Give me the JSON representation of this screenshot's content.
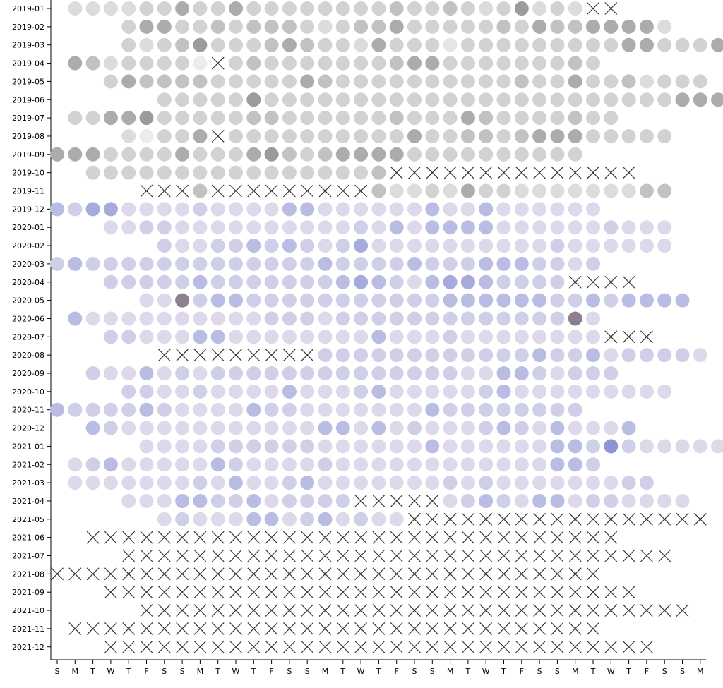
{
  "chart_data": {
    "type": "heatmap",
    "title": "",
    "xlabel": "",
    "ylabel": "",
    "mark": "circle",
    "x_labels": [
      "S",
      "M",
      "T",
      "W",
      "T",
      "F",
      "S",
      "S",
      "M",
      "T",
      "W",
      "T",
      "F",
      "S",
      "S",
      "M",
      "T",
      "W",
      "T",
      "F",
      "S",
      "S",
      "M",
      "T",
      "W",
      "T",
      "F",
      "S",
      "S",
      "M",
      "T",
      "W",
      "T",
      "F",
      "S",
      "S",
      "M"
    ],
    "rows": [
      {
        "month": "2019-01",
        "start": 1,
        "values": [
          2,
          2,
          2,
          2,
          3,
          3,
          5,
          3,
          3,
          5,
          3,
          3,
          3,
          3,
          3,
          3,
          3,
          3,
          4,
          3,
          3,
          4,
          3,
          2,
          3,
          6,
          2,
          3,
          2,
          3
        ],
        "missing_from": 29
      },
      {
        "month": "2019-02",
        "start": 4,
        "values": [
          3,
          5,
          5,
          3,
          3,
          4,
          3,
          4,
          4,
          4,
          3,
          2,
          3,
          4,
          4,
          5,
          3,
          3,
          3,
          3,
          3,
          4,
          3,
          5,
          4,
          4,
          5,
          5,
          5,
          5,
          2
        ]
      },
      {
        "month": "2019-03",
        "start": 4,
        "values": [
          3,
          2,
          3,
          4,
          6,
          3,
          3,
          3,
          4,
          5,
          4,
          3,
          3,
          2,
          5,
          3,
          3,
          3,
          1,
          3,
          3,
          3,
          3,
          3,
          3,
          3,
          3,
          3,
          5,
          5,
          3,
          3,
          3,
          5,
          5,
          3,
          3
        ]
      },
      {
        "month": "2019-04",
        "start": 1,
        "values": [
          5,
          4,
          2,
          3,
          3,
          3,
          3,
          0,
          3,
          3,
          4,
          3,
          3,
          3,
          3,
          3,
          3,
          3,
          4,
          5,
          5,
          3,
          3,
          3,
          3,
          3,
          3,
          3,
          4,
          3
        ],
        "missing": [
          8
        ]
      },
      {
        "month": "2019-05",
        "start": 3,
        "values": [
          3,
          5,
          4,
          4,
          4,
          4,
          3,
          3,
          3,
          3,
          3,
          5,
          4,
          3,
          3,
          3,
          3,
          3,
          3,
          3,
          3,
          3,
          3,
          4,
          3,
          3,
          5,
          3,
          3,
          4,
          2,
          3,
          3,
          3
        ]
      },
      {
        "month": "2019-06",
        "start": 6,
        "values": [
          3,
          3,
          3,
          3,
          3,
          6,
          3,
          3,
          3,
          3,
          3,
          3,
          3,
          3,
          3,
          3,
          3,
          3,
          3,
          3,
          3,
          3,
          3,
          3,
          3,
          3,
          3,
          3,
          3,
          5,
          5,
          5,
          5
        ]
      },
      {
        "month": "2019-07",
        "start": 1,
        "values": [
          3,
          3,
          5,
          5,
          6,
          3,
          3,
          3,
          3,
          3,
          4,
          4,
          3,
          3,
          3,
          3,
          3,
          3,
          4,
          3,
          3,
          3,
          5,
          4,
          3,
          3,
          3,
          3,
          4,
          3,
          3
        ],
        "missing_from": 31
      },
      {
        "month": "2019-08",
        "start": 4,
        "values": [
          2,
          0,
          3,
          3,
          5,
          3,
          3,
          3,
          3,
          3,
          3,
          3,
          3,
          3,
          3,
          3,
          5,
          3,
          3,
          4,
          4,
          3,
          4,
          5,
          5,
          5,
          3,
          3,
          3,
          3,
          3
        ],
        "missing": [
          5
        ]
      },
      {
        "month": "2019-09",
        "start": 0,
        "values": [
          5,
          5,
          5,
          3,
          3,
          3,
          3,
          5,
          3,
          3,
          3,
          5,
          6,
          4,
          3,
          4,
          5,
          5,
          5,
          5,
          3,
          3,
          3,
          3,
          3,
          3,
          3,
          3,
          3,
          3
        ]
      },
      {
        "month": "2019-10",
        "start": 2,
        "values": [
          3,
          3,
          3,
          3,
          3,
          3,
          3,
          3,
          3,
          3,
          3,
          3,
          3,
          3,
          3,
          3,
          4
        ],
        "missing_from": 17
      },
      {
        "month": "2019-11",
        "start": 5,
        "values": [
          0,
          0,
          0,
          4,
          0,
          0,
          0,
          0,
          0,
          0,
          0,
          0,
          0,
          4,
          2,
          2,
          3,
          2,
          5,
          3,
          3,
          2,
          2,
          2,
          2,
          2,
          2,
          2,
          4,
          4
        ],
        "missing": [
          0,
          1,
          2,
          4,
          5,
          6,
          7,
          8,
          9,
          10,
          11,
          12
        ]
      },
      {
        "month": "2019-12",
        "start": 0,
        "values": [
          4,
          3,
          5,
          5,
          2,
          2,
          2,
          2,
          3,
          2,
          2,
          2,
          2,
          4,
          4,
          2,
          2,
          2,
          2,
          2,
          2,
          4,
          2,
          2,
          4,
          2,
          2,
          2,
          2,
          2,
          2
        ]
      },
      {
        "month": "2020-01",
        "start": 3,
        "values": [
          2,
          2,
          3,
          3,
          2,
          2,
          2,
          2,
          2,
          2,
          2,
          2,
          2,
          2,
          3,
          2,
          4,
          2,
          4,
          4,
          4,
          4,
          2,
          2,
          2,
          2,
          2,
          2,
          3,
          2,
          2,
          2
        ]
      },
      {
        "month": "2020-02",
        "start": 6,
        "values": [
          3,
          2,
          2,
          3,
          3,
          4,
          3,
          4,
          3,
          2,
          3,
          5,
          2,
          2,
          2,
          2,
          2,
          2,
          2,
          2,
          2,
          2,
          3,
          2,
          2,
          2,
          2,
          2,
          2
        ]
      },
      {
        "month": "2020-03",
        "start": 0,
        "values": [
          3,
          4,
          3,
          3,
          3,
          3,
          3,
          3,
          3,
          3,
          3,
          3,
          3,
          3,
          3,
          4,
          3,
          3,
          3,
          3,
          4,
          3,
          3,
          3,
          4,
          4,
          4,
          3,
          3,
          2,
          3
        ]
      },
      {
        "month": "2020-04",
        "start": 3,
        "values": [
          3,
          3,
          3,
          3,
          3,
          4,
          3,
          3,
          3,
          3,
          3,
          3,
          3,
          4,
          5,
          4,
          3,
          2,
          4,
          5,
          5,
          4,
          3,
          3,
          3,
          3,
          3,
          3,
          3,
          3
        ],
        "missing_from": 26
      },
      {
        "month": "2020-05",
        "start": 5,
        "values": [
          2,
          2,
          6,
          3,
          4,
          4,
          3,
          3,
          3,
          3,
          3,
          3,
          3,
          3,
          3,
          3,
          3,
          4,
          4,
          4,
          4,
          4,
          4,
          3,
          3,
          4,
          3,
          4,
          4,
          4,
          4
        ]
      },
      {
        "month": "2020-06",
        "start": 1,
        "values": [
          4,
          2,
          2,
          2,
          2,
          2,
          2,
          2,
          2,
          2,
          2,
          3,
          3,
          3,
          2,
          3,
          3,
          3,
          3,
          3,
          3,
          3,
          3,
          3,
          3,
          3,
          3,
          3,
          6,
          2
        ]
      },
      {
        "month": "2020-07",
        "start": 3,
        "values": [
          3,
          3,
          2,
          2,
          2,
          4,
          4,
          2,
          2,
          2,
          2,
          2,
          2,
          2,
          2,
          4,
          2,
          2,
          2,
          3,
          2,
          2,
          2,
          2,
          2,
          2,
          2,
          2,
          2,
          2,
          2
        ],
        "missing_from": 28
      },
      {
        "month": "2020-08",
        "start": 6,
        "values": [
          0,
          0,
          0,
          0,
          0,
          0,
          0,
          0,
          0,
          3,
          3,
          3,
          3,
          3,
          3,
          3,
          3,
          3,
          3,
          3,
          3,
          4,
          3,
          3,
          4,
          2,
          3,
          3,
          3,
          3,
          2
        ],
        "missing": [
          0,
          1,
          2,
          3,
          4,
          5,
          6,
          7,
          8
        ]
      },
      {
        "month": "2020-09",
        "start": 2,
        "values": [
          3,
          2,
          2,
          4,
          2,
          3,
          2,
          3,
          3,
          3,
          3,
          3,
          3,
          3,
          3,
          3,
          3,
          3,
          3,
          3,
          3,
          2,
          2,
          4,
          4,
          3,
          2,
          3,
          3,
          3
        ]
      },
      {
        "month": "2020-10",
        "start": 4,
        "values": [
          3,
          3,
          2,
          2,
          3,
          2,
          2,
          2,
          2,
          4,
          2,
          2,
          2,
          3,
          4,
          2,
          2,
          2,
          2,
          2,
          3,
          4,
          2,
          2,
          2,
          2,
          2,
          2,
          2,
          2,
          2
        ]
      },
      {
        "month": "2020-11",
        "start": 0,
        "values": [
          4,
          3,
          3,
          3,
          3,
          4,
          3,
          2,
          2,
          2,
          2,
          4,
          3,
          3,
          2,
          2,
          2,
          2,
          2,
          2,
          2,
          4,
          3,
          3,
          3,
          3,
          3,
          3,
          3,
          3
        ]
      },
      {
        "month": "2020-12",
        "start": 2,
        "values": [
          4,
          3,
          2,
          2,
          2,
          2,
          2,
          2,
          2,
          2,
          2,
          2,
          2,
          4,
          4,
          2,
          4,
          2,
          3,
          2,
          2,
          2,
          3,
          4,
          3,
          2,
          4,
          2,
          2,
          2,
          4
        ]
      },
      {
        "month": "2021-01",
        "start": 5,
        "values": [
          2,
          2,
          2,
          2,
          3,
          3,
          3,
          3,
          3,
          3,
          2,
          2,
          2,
          2,
          2,
          2,
          4,
          2,
          2,
          2,
          2,
          2,
          2,
          4,
          4,
          3,
          6,
          3,
          2,
          2,
          2,
          2,
          2,
          2,
          2
        ]
      },
      {
        "month": "2021-02",
        "start": 1,
        "values": [
          2,
          3,
          4,
          2,
          2,
          2,
          2,
          2,
          4,
          3,
          2,
          2,
          2,
          2,
          3,
          2,
          2,
          2,
          2,
          2,
          2,
          2,
          2,
          2,
          2,
          2,
          2,
          4,
          4,
          3
        ]
      },
      {
        "month": "2021-03",
        "start": 1,
        "values": [
          2,
          2,
          2,
          2,
          2,
          2,
          2,
          3,
          2,
          4,
          2,
          2,
          3,
          4,
          2,
          2,
          2,
          2,
          2,
          2,
          2,
          3,
          2,
          3,
          2,
          2,
          2,
          2,
          2,
          2,
          2,
          3,
          3
        ]
      },
      {
        "month": "2021-04",
        "start": 4,
        "values": [
          2,
          2,
          2,
          4,
          4,
          3,
          3,
          4,
          2,
          3,
          3,
          3,
          3,
          0,
          0,
          0,
          0,
          0,
          2,
          3,
          4,
          3,
          2,
          4,
          4,
          2,
          3,
          3,
          2,
          2,
          2,
          2
        ],
        "missing": [
          13,
          14,
          15,
          16,
          17
        ]
      },
      {
        "month": "2021-05",
        "start": 6,
        "values": [
          2,
          3,
          2,
          2,
          2,
          4,
          4,
          2,
          3,
          4,
          2,
          3,
          2,
          2
        ],
        "missing_from": 14
      },
      {
        "month": "2021-06",
        "start": 2,
        "values": [],
        "missing_from": 0,
        "length": 30
      },
      {
        "month": "2021-07",
        "start": 4,
        "values": [],
        "missing_from": 0,
        "length": 31
      },
      {
        "month": "2021-08",
        "start": 0,
        "values": [],
        "missing_from": 0,
        "length": 31
      },
      {
        "month": "2021-09",
        "start": 3,
        "values": [],
        "missing_from": 0,
        "length": 30
      },
      {
        "month": "2021-10",
        "start": 5,
        "values": [],
        "missing_from": 0,
        "length": 31
      },
      {
        "month": "2021-11",
        "start": 1,
        "values": [],
        "missing_from": 0,
        "length": 30
      },
      {
        "month": "2021-12",
        "start": 3,
        "values": [],
        "missing_from": 0,
        "length": 31
      }
    ],
    "palette": {
      "grey": [
        "#ececec",
        "#e6e6e6",
        "#dcdcdc",
        "#d2d2d2",
        "#c2c2c2",
        "#acacac",
        "#9b9b9b"
      ],
      "purple": [
        "#efe7ee",
        "#e8e2ee",
        "#ddd8ea",
        "#cfcfe8",
        "#b9bde3",
        "#a6aadd",
        "#8f95d3"
      ],
      "special": "#8e7f8f"
    },
    "colorless_until_row": 11,
    "grid": false,
    "legend": "none"
  }
}
